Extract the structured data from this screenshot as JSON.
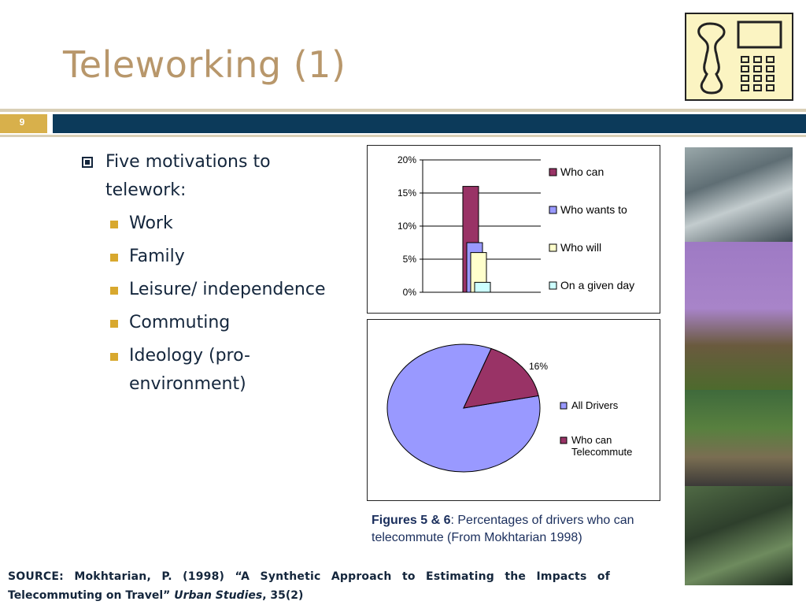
{
  "slide": {
    "title": "Teleworking (1)",
    "number": "9"
  },
  "bullets": {
    "main": "Five motivations to telework:",
    "items": [
      "Work",
      "Family",
      "Leisure/ independence",
      "Commuting",
      "Ideology (pro-environment)"
    ]
  },
  "colors": {
    "title": "#b8976b",
    "navy_band": "#0c3a5a",
    "slide_number_box": "#d8b04b",
    "text": "#14263c"
  },
  "chart_data": [
    {
      "type": "bar",
      "ylim": [
        0,
        20
      ],
      "y_tick_labels": [
        "20%",
        "15%",
        "10%",
        "5%",
        "0%"
      ],
      "series": [
        {
          "name": "Who can",
          "values": [
            16
          ],
          "color": "#993366"
        },
        {
          "name": "Who wants to",
          "values": [
            7.5
          ],
          "color": "#9999ff"
        },
        {
          "name": "Who will",
          "values": [
            6
          ],
          "color": "#ffffcc"
        },
        {
          "name": "On a given day",
          "values": [
            1.5
          ],
          "color": "#ccffff"
        }
      ],
      "legend": "right",
      "grid": true
    },
    {
      "type": "pie",
      "slices": [
        {
          "name": "All Drivers",
          "value": 84,
          "color": "#9999ff"
        },
        {
          "name": "Who can Telecommute",
          "value": 16,
          "color": "#993366"
        }
      ],
      "data_label": "16%",
      "legend": "right"
    }
  ],
  "caption": {
    "bold": "Figures 5 & 6",
    "text": ":  Percentages of drivers who can telecommute (From Mokhtarian 1998)"
  },
  "source": {
    "line1": "SOURCE: Mokhtarian, P. (1998) “A Synthetic Approach to Estimating the Impacts of",
    "line2_pre": "Telecommuting on Travel” ",
    "line2_italic": "Urban Studies",
    "line2_post": ", 35(2)"
  }
}
